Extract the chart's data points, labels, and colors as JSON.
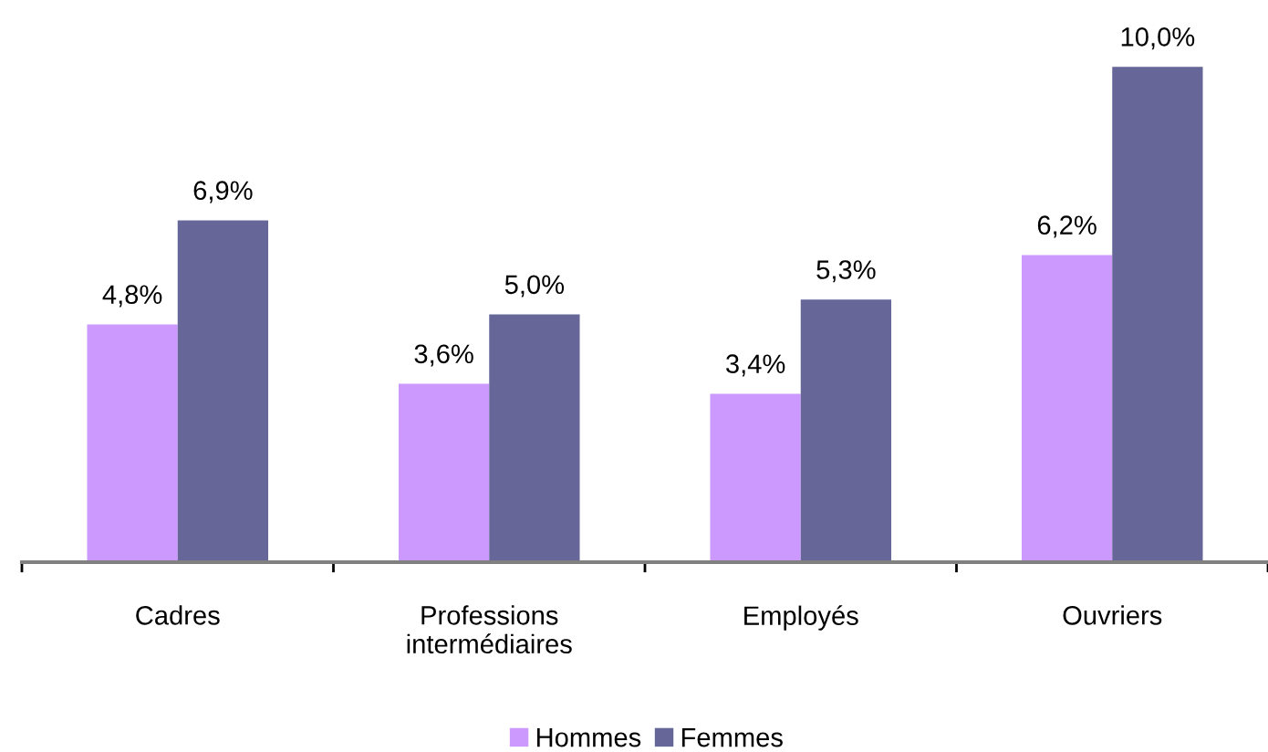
{
  "chart_data": {
    "type": "bar",
    "categories": [
      "Cadres",
      "Professions\nintermédiaires",
      "Employés",
      "Ouvriers"
    ],
    "series": [
      {
        "name": "Hommes",
        "color": "#cc99ff",
        "values": [
          4.8,
          3.6,
          3.4,
          6.2
        ],
        "value_labels": [
          "4,8%",
          "3,6%",
          "3,4%",
          "6,2%"
        ]
      },
      {
        "name": "Femmes",
        "color": "#666699",
        "values": [
          6.9,
          5.0,
          5.3,
          10.0
        ],
        "value_labels": [
          "6,9%",
          "5,0%",
          "5,3%",
          "10,0%"
        ]
      }
    ],
    "tick_labels": "x",
    "legend": "bottom"
  }
}
